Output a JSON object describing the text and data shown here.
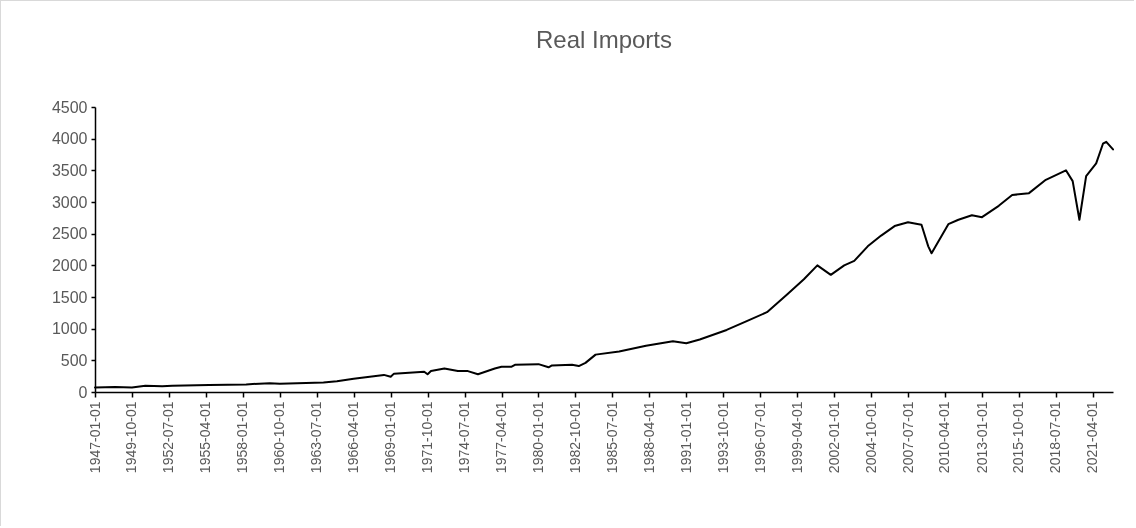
{
  "chart_data": {
    "type": "line",
    "title": "Real Imports",
    "x": [
      "1947-01-01",
      "1948-07-01",
      "1949-10-01",
      "1950-10-01",
      "1952-01-01",
      "1952-10-01",
      "1955-07-01",
      "1958-04-01",
      "1960-01-01",
      "1960-10-01",
      "1964-01-01",
      "1965-01-01",
      "1966-04-01",
      "1968-07-01",
      "1969-01-01",
      "1969-04-01",
      "1971-07-01",
      "1971-10-01",
      "1972-01-01",
      "1973-01-01",
      "1974-01-01",
      "1974-10-01",
      "1975-07-01",
      "1976-10-01",
      "1977-04-01",
      "1978-01-01",
      "1978-04-01",
      "1980-01-01",
      "1980-10-01",
      "1981-01-01",
      "1982-07-01",
      "1983-01-01",
      "1983-07-01",
      "1984-04-01",
      "1986-01-01",
      "1988-01-01",
      "1990-01-01",
      "1991-01-01",
      "1992-01-01",
      "1994-01-01",
      "1995-07-01",
      "1997-01-01",
      "1998-07-01",
      "1999-10-01",
      "2000-10-01",
      "2001-10-01",
      "2002-10-01",
      "2003-07-01",
      "2004-07-01",
      "2005-07-01",
      "2006-07-01",
      "2007-07-01",
      "2008-07-01",
      "2009-01-01",
      "2009-04-01",
      "2010-07-01",
      "2011-04-01",
      "2012-04-01",
      "2013-01-01",
      "2014-04-01",
      "2015-04-01",
      "2016-07-01",
      "2017-10-01",
      "2019-04-01",
      "2019-10-01",
      "2020-04-01",
      "2020-10-01",
      "2021-07-01",
      "2022-01-01",
      "2022-04-01",
      "2022-10-01"
    ],
    "series": [
      {
        "color": "#000000",
        "values": [
          70,
          80,
          70,
          100,
          90,
          100,
          110,
          120,
          140,
          130,
          150,
          170,
          210,
          270,
          240,
          290,
          320,
          280,
          330,
          370,
          330,
          330,
          280,
          370,
          400,
          400,
          430,
          440,
          390,
          420,
          430,
          410,
          460,
          590,
          640,
          730,
          800,
          770,
          830,
          980,
          1120,
          1260,
          1540,
          1780,
          2000,
          1850,
          2000,
          2070,
          2300,
          2470,
          2620,
          2680,
          2640,
          2300,
          2190,
          2650,
          2720,
          2790,
          2760,
          2940,
          3110,
          3140,
          3350,
          3500,
          3330,
          2720,
          3410,
          3610,
          3920,
          3950,
          3830
        ]
      }
    ],
    "xlim": [
      "1947-01-01",
      "2022-10-01"
    ],
    "xticks": [
      "1947-01-01",
      "1949-10-01",
      "1952-07-01",
      "1955-04-01",
      "1958-01-01",
      "1960-10-01",
      "1963-07-01",
      "1966-04-01",
      "1969-01-01",
      "1971-10-01",
      "1974-07-01",
      "1977-04-01",
      "1980-01-01",
      "1982-10-01",
      "1985-07-01",
      "1988-04-01",
      "1991-01-01",
      "1993-10-01",
      "1996-07-01",
      "1999-04-01",
      "2002-01-01",
      "2004-10-01",
      "2007-07-01",
      "2010-04-01",
      "2013-01-01",
      "2015-10-01",
      "2018-07-01",
      "2021-04-01"
    ],
    "ylim": [
      0,
      4500
    ],
    "yticks": [
      0,
      500,
      1000,
      1500,
      2000,
      2500,
      3000,
      3500,
      4000,
      4500
    ]
  }
}
